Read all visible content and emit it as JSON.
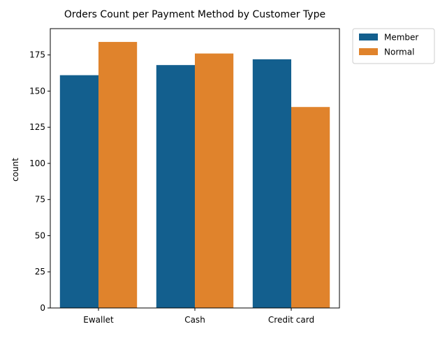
{
  "chart_data": {
    "type": "bar",
    "title": "Orders Count per Payment Method by Customer Type",
    "xlabel": "",
    "ylabel": "count",
    "categories": [
      "Ewallet",
      "Cash",
      "Credit card"
    ],
    "series": [
      {
        "name": "Member",
        "values": [
          161,
          168,
          172
        ],
        "color": "#135f8e"
      },
      {
        "name": "Normal",
        "values": [
          184,
          176,
          139
        ],
        "color": "#e0832c"
      }
    ],
    "ylim": [
      0,
      193.2
    ],
    "yticks": [
      0,
      25,
      50,
      75,
      100,
      125,
      150,
      175
    ],
    "grid": false,
    "legend_position": "outside-top-right"
  }
}
